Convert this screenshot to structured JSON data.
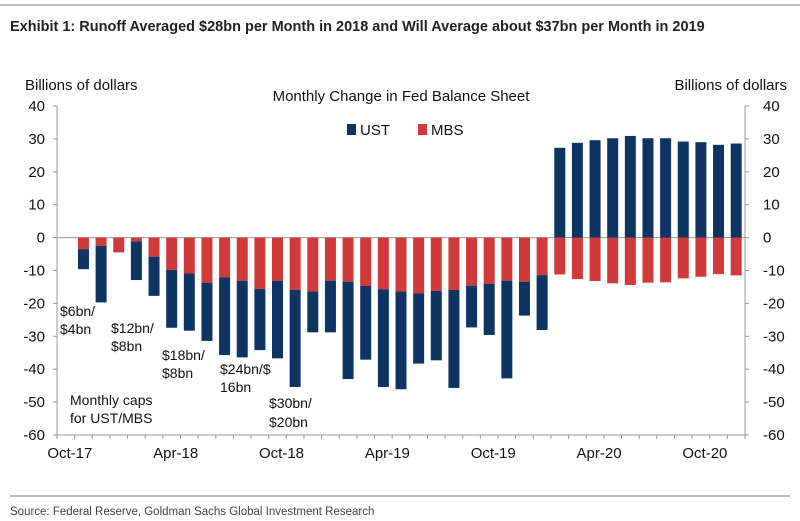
{
  "exhibit_title": "Exhibit 1: Runoff Averaged $28bn per Month in 2018 and Will Average about $37bn per Month in 2019",
  "source": "Source: Federal Reserve, Goldman Sachs Global Investment Research",
  "colors": {
    "UST": "#0d3463",
    "MBS": "#d03a3a",
    "axis": "#999999"
  },
  "chart_data": {
    "type": "bar",
    "stacked": true,
    "title": "Monthly Change in Fed Balance Sheet",
    "ylabel_left": "Billions of dollars",
    "ylabel_right": "Billions of dollars",
    "ylim": [
      -60,
      40
    ],
    "yticks": [
      40,
      30,
      20,
      10,
      0,
      -10,
      -20,
      -30,
      -40,
      -50,
      -60
    ],
    "xtick_labels": [
      "Oct-17",
      "Apr-18",
      "Oct-18",
      "Apr-19",
      "Oct-19",
      "Apr-20",
      "Oct-20"
    ],
    "legend": {
      "placement": "top-center",
      "entries": [
        "UST",
        "MBS"
      ]
    },
    "categories": [
      "Oct-17",
      "Nov-17",
      "Dec-17",
      "Jan-18",
      "Feb-18",
      "Mar-18",
      "Apr-18",
      "May-18",
      "Jun-18",
      "Jul-18",
      "Aug-18",
      "Sep-18",
      "Oct-18",
      "Nov-18",
      "Dec-18",
      "Jan-19",
      "Feb-19",
      "Mar-19",
      "Apr-19",
      "May-19",
      "Jun-19",
      "Jul-19",
      "Aug-19",
      "Sep-19",
      "Oct-19",
      "Nov-19",
      "Dec-19",
      "Jan-20",
      "Feb-20",
      "Mar-20",
      "Apr-20",
      "May-20",
      "Jun-20",
      "Jul-20",
      "Aug-20",
      "Sep-20",
      "Oct-20",
      "Nov-20",
      "Dec-20"
    ],
    "series": [
      {
        "name": "UST",
        "values": [
          0,
          -6.1,
          -17.2,
          0,
          -11.7,
          -11.9,
          -17.6,
          -17.4,
          -17.7,
          -23.6,
          -23.3,
          -18.6,
          -23.6,
          -29.5,
          -12.4,
          -15.7,
          -29.6,
          -22.4,
          -29.7,
          -29.7,
          -21.3,
          -21.1,
          -29.8,
          -12.7,
          -15.5,
          -29.7,
          -10.3,
          -16.7,
          27.3,
          28.8,
          29.6,
          30.2,
          30.9,
          30.2,
          30.2,
          29.2,
          29.0,
          28.2,
          28.6
        ]
      },
      {
        "name": "MBS",
        "values": [
          0,
          -3.5,
          -2.5,
          -4.5,
          -1.2,
          -5.8,
          -9.8,
          -10.9,
          -13.7,
          -12.1,
          -13.1,
          -15.6,
          -13.1,
          -15.9,
          -16.4,
          -13.1,
          -13.4,
          -14.7,
          -15.7,
          -16.4,
          -17.0,
          -16.2,
          -15.9,
          -14.6,
          -14.1,
          -13.1,
          -13.4,
          -11.4,
          -11.2,
          -12.6,
          -13.2,
          -13.9,
          -14.4,
          -13.7,
          -13.6,
          -12.4,
          -11.9,
          -11.1,
          -11.5
        ]
      }
    ],
    "annotations": {
      "caps_label": [
        "Monthly caps",
        "for UST/MBS"
      ],
      "caps": [
        [
          "$6bn/",
          "$4bn"
        ],
        [
          "$12bn/",
          "$8bn"
        ],
        [
          "$18bn/",
          "$8bn"
        ],
        [
          "$24bn/$",
          "16bn"
        ],
        [
          "$30bn/",
          "$20bn"
        ]
      ]
    }
  }
}
